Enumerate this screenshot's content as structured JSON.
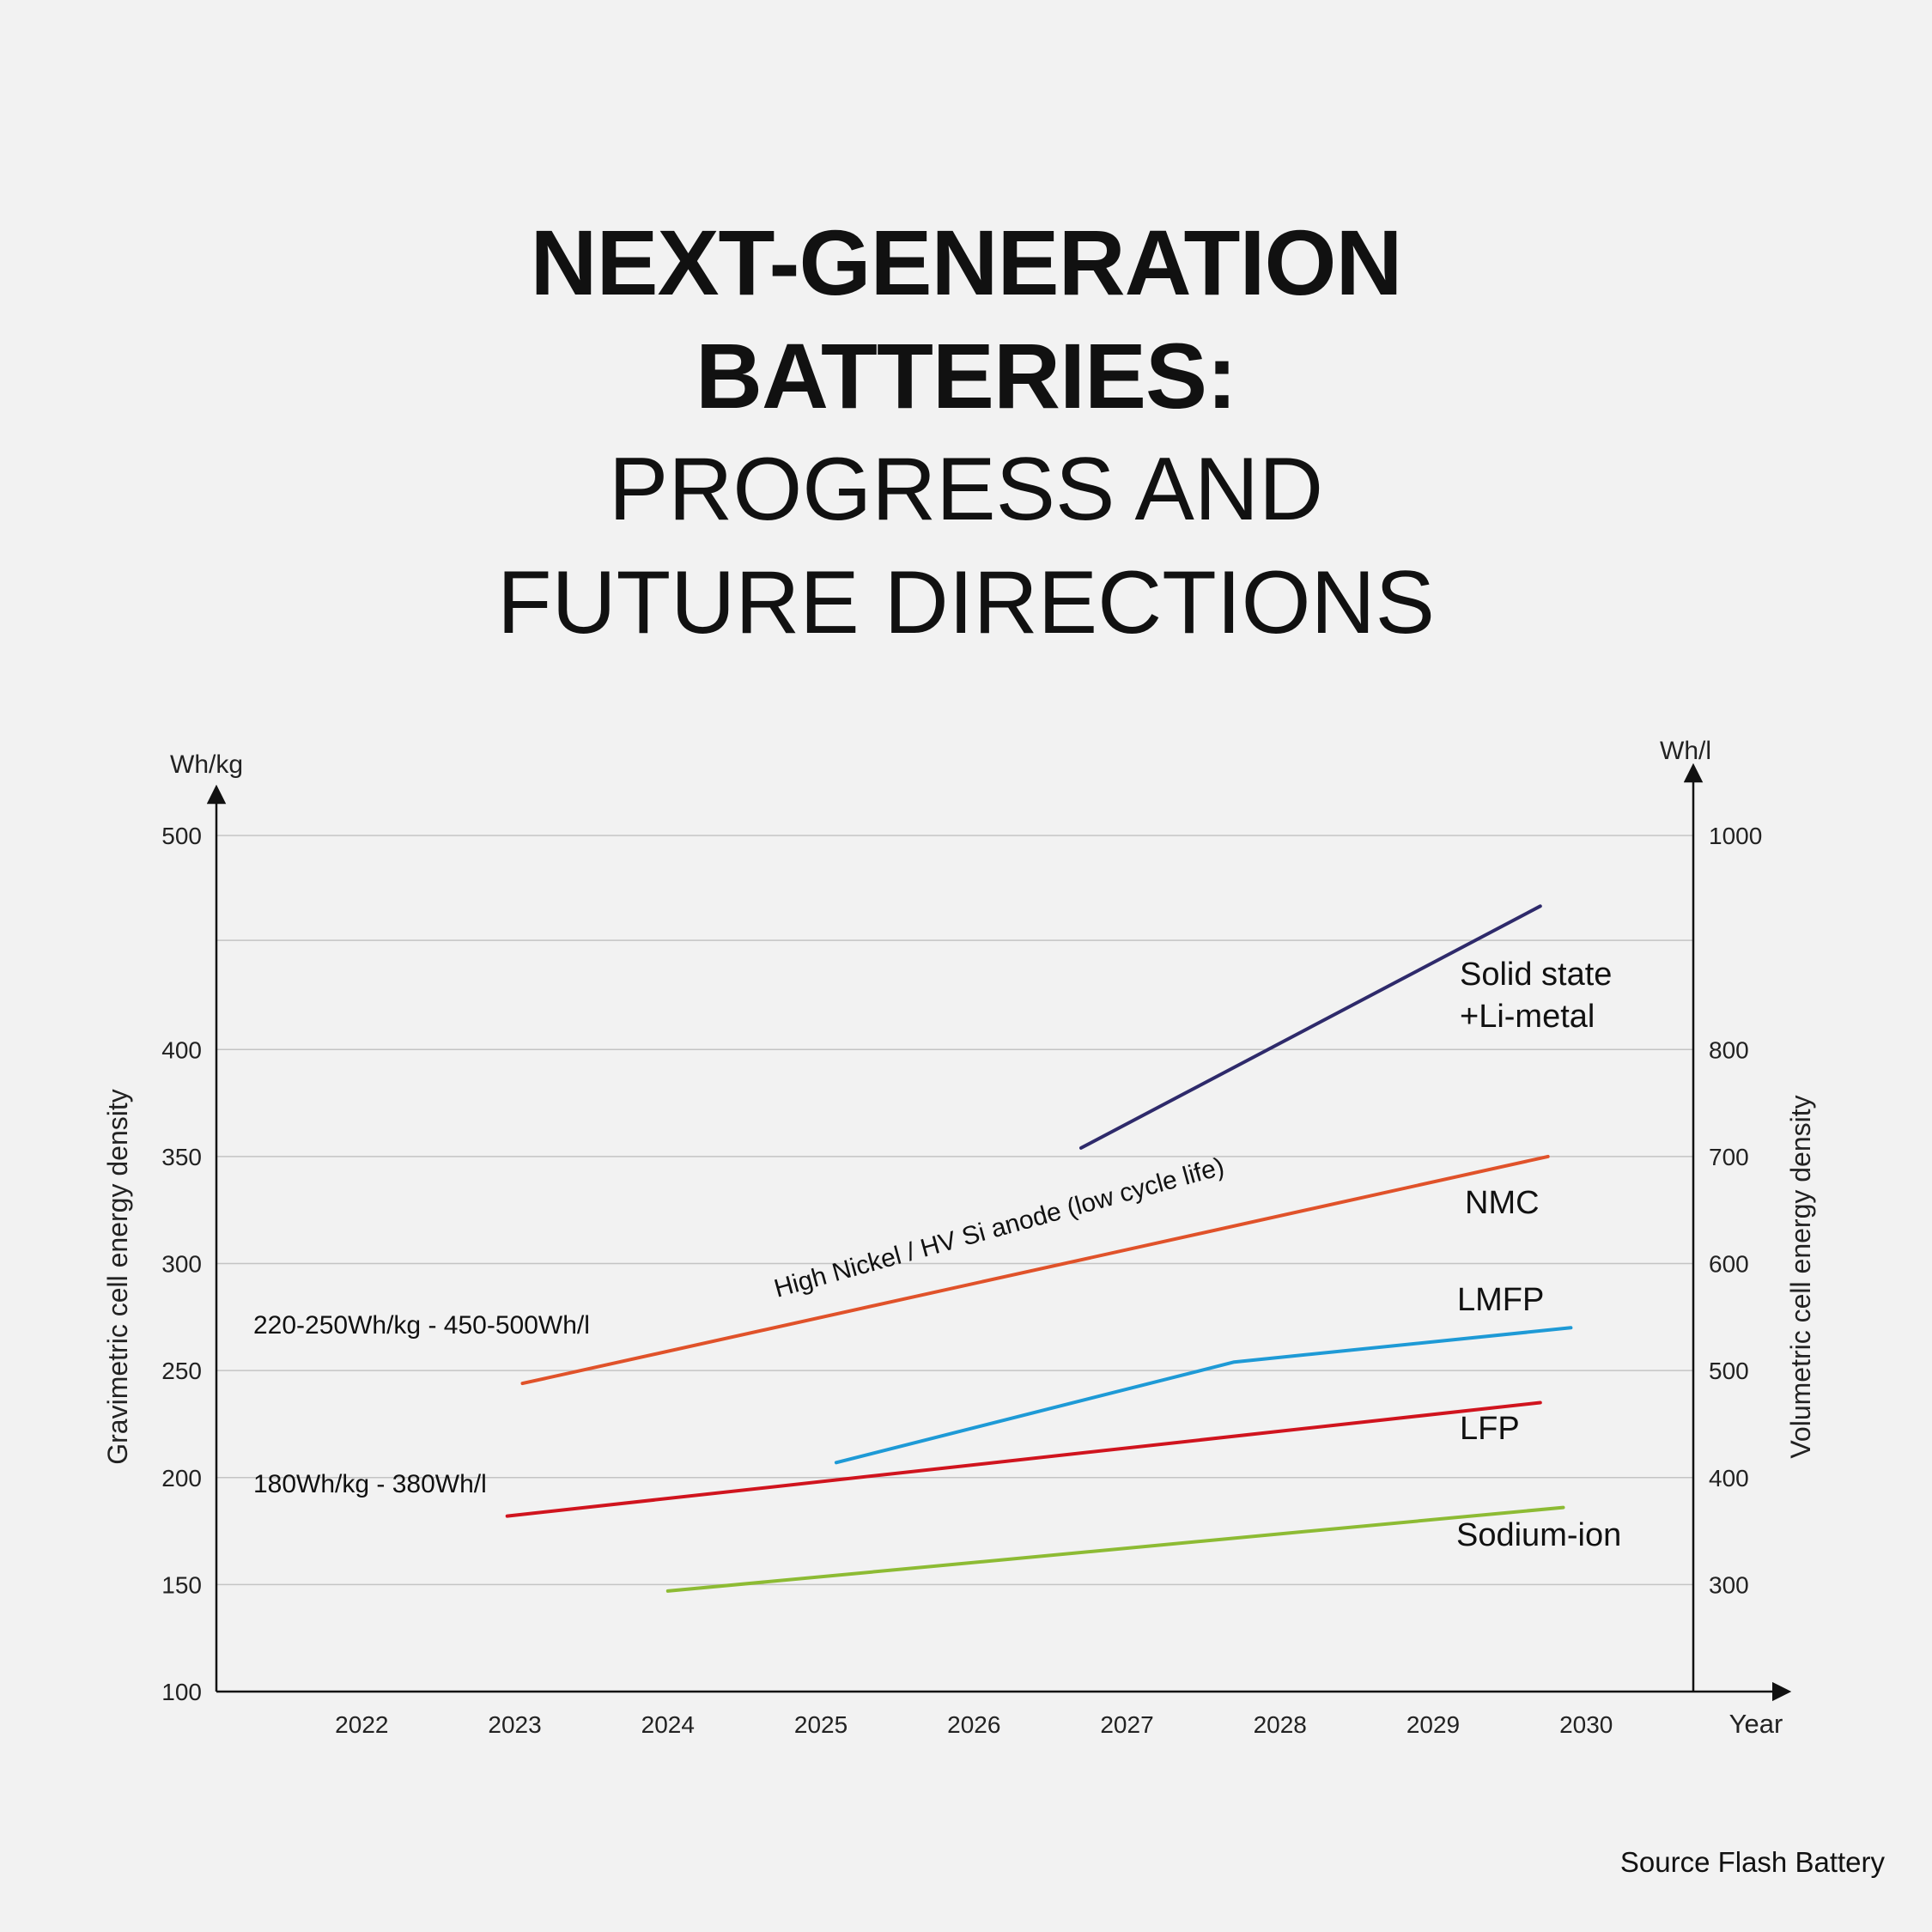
{
  "title": {
    "line1": "NEXT-GENERATION",
    "line2": "BATTERIES:",
    "line3": "PROGRESS AND",
    "line4": "FUTURE DIRECTIONS"
  },
  "source": "Source Flash Battery",
  "chart_data": {
    "type": "line",
    "xlabel": "Year",
    "ylabel": "Gravimetric cell energy density",
    "y2label": "Volumetric cell energy density",
    "y_unit": "Wh/kg",
    "y2_unit": "Wh/l",
    "xlim": [
      2021.05,
      2030.7
    ],
    "ylim": [
      100,
      500
    ],
    "y2lim": [
      200,
      1000
    ],
    "x_ticks": [
      "2022",
      "2023",
      "2024",
      "2025",
      "2026",
      "2027",
      "2028",
      "2029",
      "2030"
    ],
    "y_ticks": [
      "100",
      "150",
      "200",
      "250",
      "300",
      "350",
      "400",
      "500"
    ],
    "y2_ticks": [
      "300",
      "400",
      "500",
      "600",
      "700",
      "800",
      "1000"
    ],
    "gridlines_y": [
      150,
      200,
      250,
      300,
      350,
      400,
      451,
      500
    ],
    "grid": true,
    "series": [
      {
        "name": "Solid state +Li-metal",
        "label_lines": [
          "Solid state",
          "+Li-metal"
        ],
        "color": "#2e2a6b",
        "x": [
          2026.7,
          2029.7
        ],
        "y": [
          354,
          467
        ]
      },
      {
        "name": "NMC",
        "label_lines": [
          "NMC"
        ],
        "color": "#e0522a",
        "x": [
          2023.05,
          2029.75
        ],
        "y": [
          244,
          350
        ]
      },
      {
        "name": "LMFP",
        "label_lines": [
          "LMFP"
        ],
        "color": "#1e9ad6",
        "x": [
          2025.1,
          2027.7,
          2029.9
        ],
        "y": [
          207,
          254,
          270
        ]
      },
      {
        "name": "LFP",
        "label_lines": [
          "LFP"
        ],
        "color": "#d0141e",
        "x": [
          2022.95,
          2029.7
        ],
        "y": [
          182,
          235
        ]
      },
      {
        "name": "Sodium-ion",
        "label_lines": [
          "Sodium-ion"
        ],
        "color": "#8dbb34",
        "x": [
          2024.0,
          2029.85
        ],
        "y": [
          147,
          186
        ]
      }
    ],
    "annotations": [
      {
        "text": "High Nickel / HV Si anode (low cycle life)"
      },
      {
        "text": "220-250Wh/kg - 450-500Wh/l"
      },
      {
        "text": "180Wh/kg - 380Wh/l"
      }
    ]
  }
}
